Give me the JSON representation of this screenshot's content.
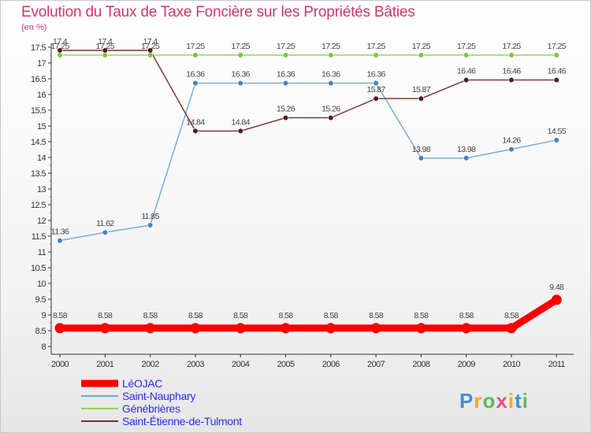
{
  "chart_data": {
    "type": "line",
    "title": "Evolution du Taux de Taxe Foncière sur les Propriétés Bâties",
    "ylabel": "(en %)",
    "xlabel": "",
    "x": [
      "2000",
      "2001",
      "2002",
      "2003",
      "2004",
      "2005",
      "2006",
      "2007",
      "2008",
      "2009",
      "2010",
      "2011"
    ],
    "ylim": [
      8,
      17.5
    ],
    "yticks": [
      "8",
      "8.5",
      "9",
      "9.5",
      "10",
      "10.5",
      "11",
      "11.5",
      "12",
      "12.5",
      "13",
      "13.5",
      "14",
      "14.5",
      "15",
      "15.5",
      "16",
      "16.5",
      "17",
      "17.5"
    ],
    "grid": false,
    "legend_position": "bottom-left",
    "series": [
      {
        "name": "LéOJAC",
        "color": "#ff0000",
        "values": [
          8.58,
          8.58,
          8.58,
          8.58,
          8.58,
          8.58,
          8.58,
          8.58,
          8.58,
          8.58,
          8.58,
          9.48
        ],
        "labels": [
          "8.58",
          "8.58",
          "8.58",
          "8.58",
          "8.58",
          "8.58",
          "8.58",
          "8.58",
          "8.58",
          "8.58",
          "8.58",
          "9.48"
        ]
      },
      {
        "name": "Saint-Nauphary",
        "color": "#6fa8dc",
        "marker_color": "#3d85c6",
        "values": [
          11.36,
          11.62,
          11.85,
          16.36,
          16.36,
          16.36,
          16.36,
          16.36,
          13.98,
          13.98,
          14.26,
          14.55
        ],
        "labels": [
          "11.36",
          "11.62",
          "11.85",
          "16.36",
          "16.36",
          "16.36",
          "16.36",
          "16.36",
          "13.98",
          "13.98",
          "14.26",
          "14.55"
        ]
      },
      {
        "name": "Génébrières",
        "color": "#93d65a",
        "marker_color": "#7cc43f",
        "values": [
          17.25,
          17.25,
          17.25,
          17.25,
          17.25,
          17.25,
          17.25,
          17.25,
          17.25,
          17.25,
          17.25,
          17.25
        ],
        "labels": [
          "17.25",
          "17.25",
          "17.25",
          "17.25",
          "17.25",
          "17.25",
          "17.25",
          "17.25",
          "17.25",
          "17.25",
          "17.25",
          "17.25"
        ]
      },
      {
        "name": "Saint-Étienne-de-Tulmont",
        "color": "#7b2e2e",
        "marker_color": "#5c1a1a",
        "values": [
          17.4,
          17.4,
          17.4,
          14.84,
          14.84,
          15.26,
          15.26,
          15.87,
          15.87,
          16.46,
          16.46,
          16.46
        ],
        "labels": [
          "17.4",
          "17.4",
          "17.4",
          "14.84",
          "14.84",
          "15.26",
          "15.26",
          "15.87",
          "15.87",
          "16.46",
          "16.46",
          "16.46"
        ]
      }
    ]
  },
  "logo": {
    "text": "Proxiti"
  }
}
